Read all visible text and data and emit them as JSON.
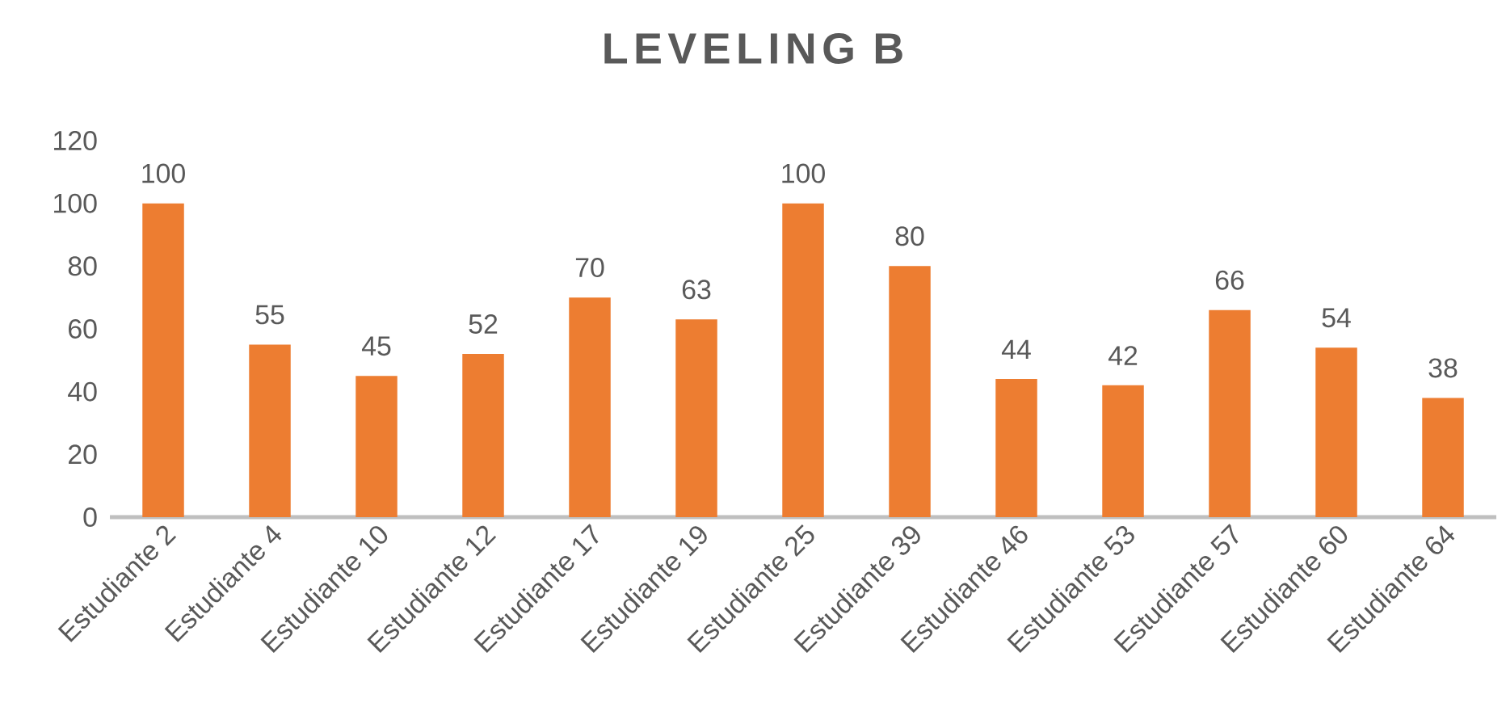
{
  "chart_data": {
    "type": "bar",
    "title": "LEVELING B",
    "categories": [
      "Estudiante 2",
      "Estudiante 4",
      "Estudiante 10",
      "Estudiante 12",
      "Estudiante 17",
      "Estudiante 19",
      "Estudiante 25",
      "Estudiante 39",
      "Estudiante 46",
      "Estudiante 53",
      "Estudiante 57",
      "Estudiante 60",
      "Estudiante 64"
    ],
    "values": [
      100,
      55,
      45,
      52,
      70,
      63,
      100,
      80,
      44,
      42,
      66,
      54,
      38
    ],
    "color": "#ed7d31",
    "ylim": [
      0,
      120
    ],
    "yticks": [
      0,
      20,
      40,
      60,
      80,
      100,
      120
    ],
    "data_labels": true
  }
}
